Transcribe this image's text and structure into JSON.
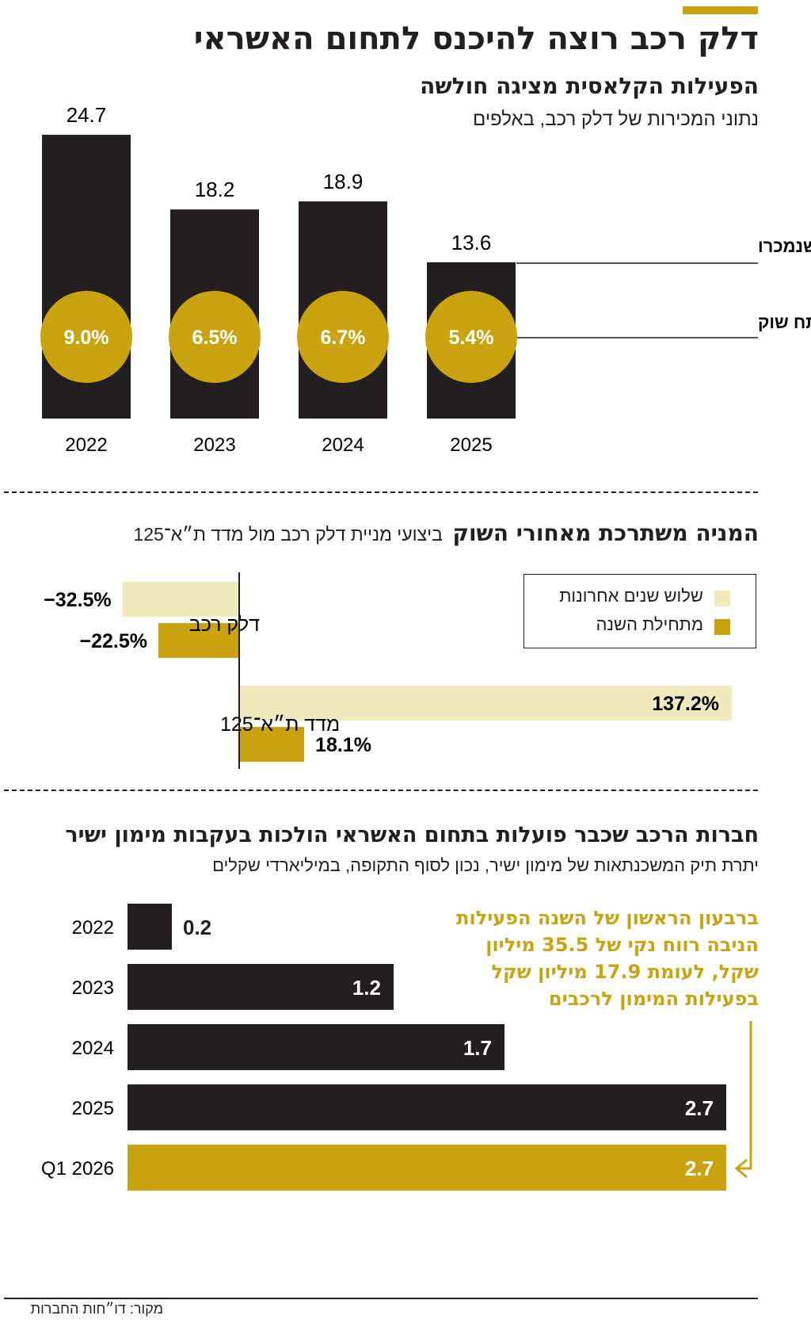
{
  "header": {
    "title": "דלק רכב רוצה להיכנס לתחום האשראי"
  },
  "section1": {
    "title": "הפעילות הקלאסית מציגה חולשה",
    "subtitle": "נתוני המכירות של דלק רכב, באלפים",
    "label_cars": "מכוניות שנמכרו",
    "label_share": "נתח שוק"
  },
  "section2": {
    "title": "המניה משתרכת מאחורי השוק",
    "subtitle": "ביצועי מניית דלק רכב מול מדד ת״א־125",
    "legend": {
      "three_years": "שלוש שנים אחרונות",
      "ytd": "מתחילת השנה"
    }
  },
  "section3": {
    "title": "חברות הרכב שכבר פועלות בתחום האשראי הולכות בעקבות מימון ישיר",
    "subtitle": "יתרת תיק המשכנתאות של מימון ישיר, נכון לסוף התקופה, במיליארדי שקלים",
    "note_lines": [
      "ברבעון הראשון של השנה הפעילות",
      "הניבה רווח נקי של 35.5 מיליון",
      "שקל, לעומת 17.9 מיליון שקל",
      "בפעילות המימון לרכבים"
    ]
  },
  "footer": {
    "source": "מקור: דו״חות החברות"
  },
  "colors": {
    "gold": "#c9a410",
    "light": "#f0eabd",
    "dark": "#231f20"
  },
  "chart_data": [
    {
      "type": "bar",
      "categories": [
        "2022",
        "2023",
        "2024",
        "2025"
      ],
      "series": [
        {
          "name": "מכוניות שנמכרו",
          "values": [
            24.7,
            18.2,
            18.9,
            13.6
          ],
          "labels": [
            "24.7",
            "18.2",
            "18.9",
            "13.6"
          ]
        },
        {
          "name": "נתח שוק",
          "values": [
            9.0,
            6.5,
            6.7,
            5.4
          ],
          "labels": [
            "9.0%",
            "6.5%",
            "6.7%",
            "5.4%"
          ]
        }
      ],
      "ylim": [
        0,
        24.7
      ]
    },
    {
      "type": "bar",
      "orientation": "horizontal",
      "categories": [
        "דלק רכב",
        "מדד ת״א־125"
      ],
      "series": [
        {
          "name": "שלוש שנים אחרונות",
          "values": [
            -32.5,
            137.2
          ],
          "labels": [
            "−32.5%",
            "137.2%"
          ]
        },
        {
          "name": "מתחילת השנה",
          "values": [
            -22.5,
            18.1
          ],
          "labels": [
            "−22.5%",
            "18.1%"
          ]
        }
      ]
    },
    {
      "type": "bar",
      "orientation": "horizontal",
      "categories": [
        "2022",
        "2023",
        "2024",
        "2025",
        "Q1 2026"
      ],
      "values": [
        0.2,
        1.2,
        1.7,
        2.7,
        2.7
      ],
      "labels": [
        "0.2",
        "1.2",
        "1.7",
        "2.7",
        "2.7"
      ],
      "xlim": [
        0,
        2.7
      ]
    }
  ]
}
